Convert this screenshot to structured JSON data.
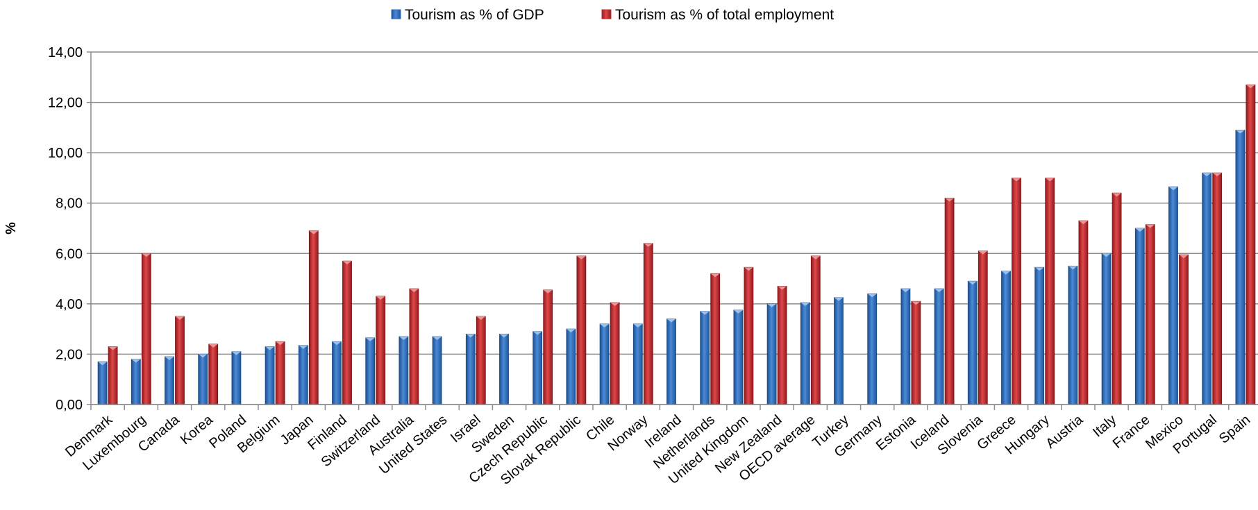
{
  "chart_data": {
    "type": "bar",
    "title": "",
    "xlabel": "",
    "ylabel": "%",
    "ylim": [
      0,
      14
    ],
    "yticks": [
      0,
      2,
      4,
      6,
      8,
      10,
      12,
      14
    ],
    "ytick_labels": [
      "0,00",
      "2,00",
      "4,00",
      "6,00",
      "8,00",
      "10,00",
      "12,00",
      "14,00"
    ],
    "grid": true,
    "legend_position": "top-center",
    "categories": [
      "Denmark",
      "Luxembourg",
      "Canada",
      "Korea",
      "Poland",
      "Belgium",
      "Japan",
      "Finland",
      "Switzerland",
      "Australia",
      "United States",
      "Israel",
      "Sweden",
      "Czech Republic",
      "Slovak Republic",
      "Chile",
      "Norway",
      "Ireland",
      "Netherlands",
      "United Kingdom",
      "New Zealand",
      "OECD average",
      "Turkey",
      "Germany",
      "Estonia",
      "Iceland",
      "Slovenia",
      "Greece",
      "Hungary",
      "Austria",
      "Italy",
      "France",
      "Mexico",
      "Portugal",
      "Spain"
    ],
    "series": [
      {
        "name": "Tourism as % of GDP",
        "color": "#2e6fbd",
        "values": [
          1.7,
          1.8,
          1.9,
          2.0,
          2.1,
          2.3,
          2.35,
          2.5,
          2.65,
          2.7,
          2.7,
          2.8,
          2.8,
          2.9,
          3.0,
          3.2,
          3.2,
          3.4,
          3.7,
          3.75,
          4.0,
          4.05,
          4.25,
          4.4,
          4.6,
          4.6,
          4.9,
          5.3,
          5.45,
          5.5,
          6.0,
          7.0,
          8.65,
          9.2,
          10.9
        ]
      },
      {
        "name": "Tourism as % of total employment",
        "color": "#c8292b",
        "values": [
          2.3,
          6.0,
          3.5,
          2.4,
          null,
          2.5,
          6.9,
          5.7,
          4.3,
          4.6,
          null,
          3.5,
          null,
          4.55,
          5.9,
          4.05,
          6.4,
          null,
          5.2,
          5.45,
          4.7,
          5.9,
          null,
          null,
          4.1,
          8.2,
          6.1,
          9.0,
          9.0,
          7.3,
          8.4,
          7.15,
          5.95,
          9.2,
          12.7
        ]
      }
    ]
  }
}
